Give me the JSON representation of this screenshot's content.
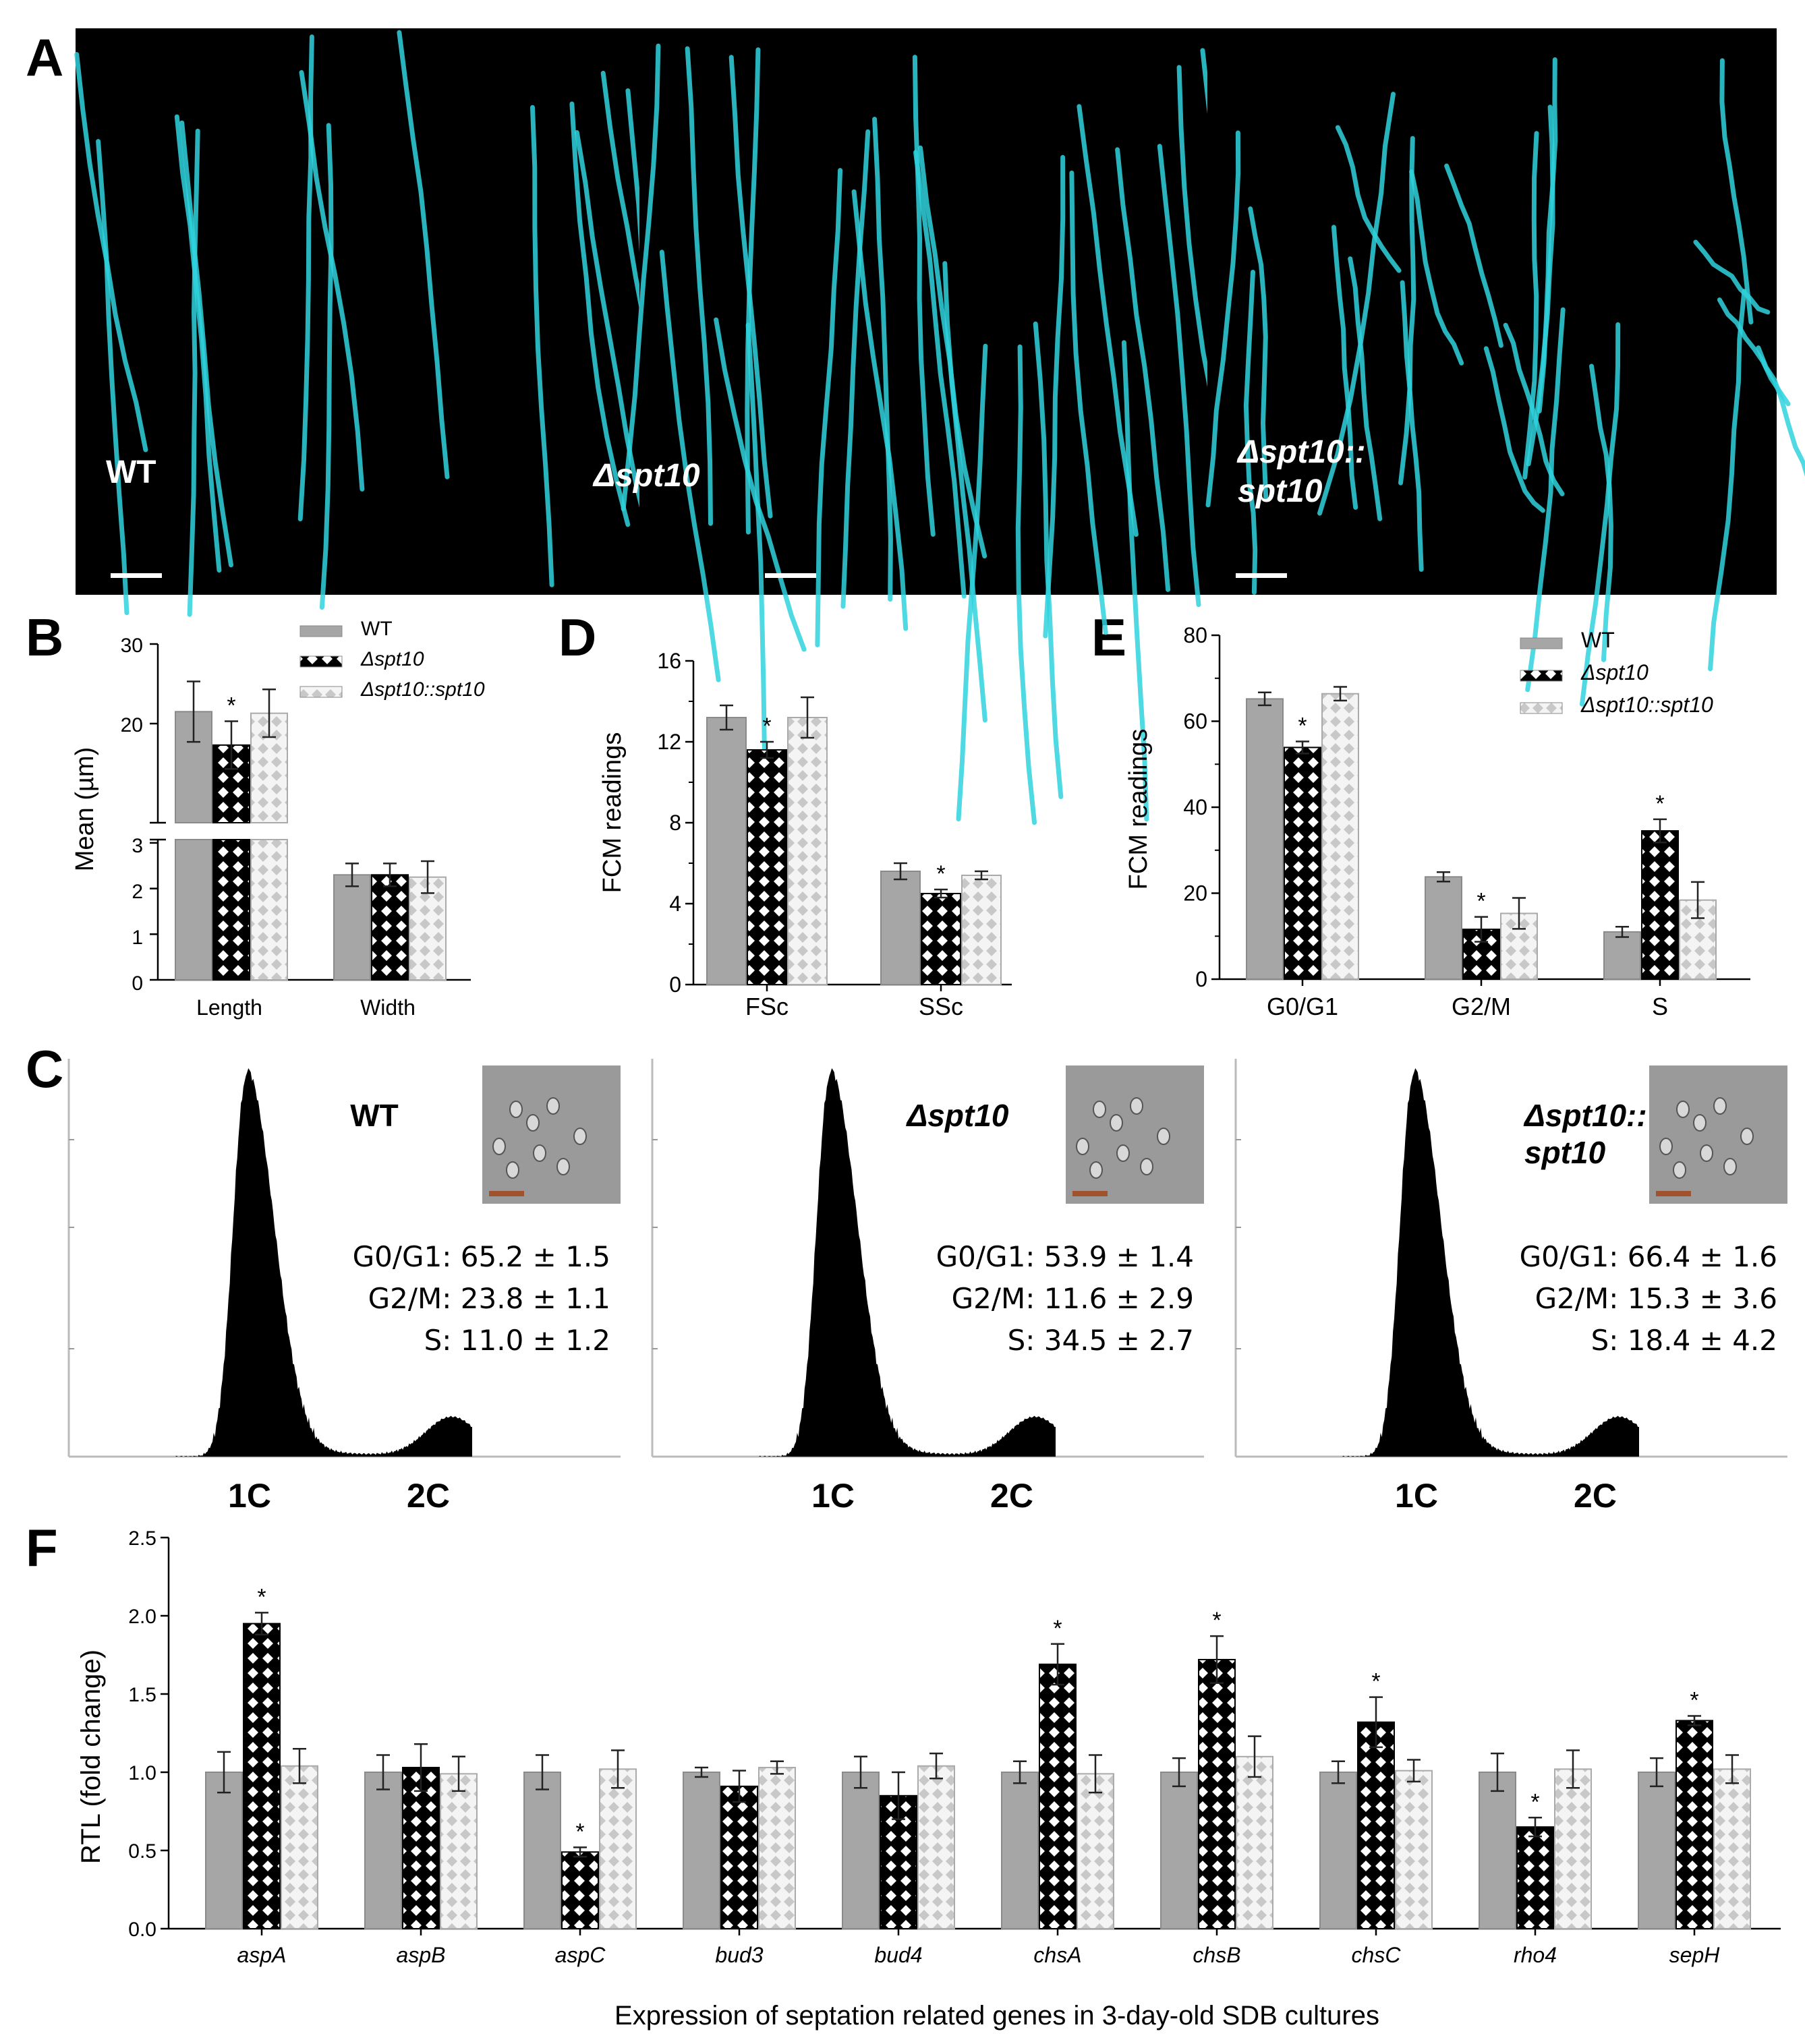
{
  "panels": {
    "A": "A",
    "B": "B",
    "C": "C",
    "D": "D",
    "E": "E",
    "F": "F"
  },
  "micro": [
    {
      "label": "WT",
      "italic": false,
      "line2": ""
    },
    {
      "label": "Δspt10",
      "italic": true,
      "line2": ""
    },
    {
      "label": "Δspt10::",
      "italic": true,
      "line2": "spt10"
    }
  ],
  "legend": {
    "wt": "WT",
    "mut": "Δspt10",
    "comp": "Δspt10::spt10"
  },
  "colors": {
    "wt": "#a6a6a6",
    "mut": "#000000",
    "comp": "#d6d6d6",
    "hypha": "#2fd2de"
  },
  "chart_data": [
    {
      "id": "B",
      "type": "bar",
      "categories": [
        "Length",
        "Width"
      ],
      "ylabel": "Mean (µm)",
      "yticks_upper": [
        "30",
        "20"
      ],
      "yticks_lower": [
        "3",
        "2",
        "1",
        "0"
      ],
      "broken_axis": true,
      "series": [
        {
          "name": "WT",
          "values": [
            21.5,
            2.3
          ],
          "err": [
            3.8,
            0.25
          ]
        },
        {
          "name": "Δspt10",
          "values": [
            17.3,
            2.3
          ],
          "err": [
            3.0,
            0.25
          ]
        },
        {
          "name": "Δspt10::spt10",
          "values": [
            21.3,
            2.25
          ],
          "err": [
            3.0,
            0.35
          ]
        }
      ],
      "significant": [
        [
          1,
          0
        ]
      ]
    },
    {
      "id": "D",
      "type": "bar",
      "categories": [
        "FSc",
        "SSc"
      ],
      "ylabel": "FCM readings",
      "ylim": [
        0,
        16
      ],
      "yticks": [
        "0",
        "4",
        "8",
        "12",
        "16"
      ],
      "series": [
        {
          "name": "WT",
          "values": [
            13.2,
            5.6
          ],
          "err": [
            0.6,
            0.4
          ]
        },
        {
          "name": "Δspt10",
          "values": [
            11.6,
            4.5
          ],
          "err": [
            0.4,
            0.2
          ]
        },
        {
          "name": "Δspt10::spt10",
          "values": [
            13.2,
            5.4
          ],
          "err": [
            1.0,
            0.2
          ]
        }
      ],
      "significant": [
        [
          1,
          0
        ],
        [
          1,
          1
        ]
      ]
    },
    {
      "id": "E",
      "type": "bar",
      "categories": [
        "G0/G1",
        "G2/M",
        "S"
      ],
      "ylabel": "FCM readings",
      "ylim": [
        0,
        80
      ],
      "yticks": [
        "0",
        "20",
        "40",
        "60",
        "80"
      ],
      "series": [
        {
          "name": "WT",
          "values": [
            65.2,
            23.8,
            11.0
          ],
          "err": [
            1.5,
            1.1,
            1.2
          ]
        },
        {
          "name": "Δspt10",
          "values": [
            53.9,
            11.6,
            34.5
          ],
          "err": [
            1.4,
            2.9,
            2.7
          ]
        },
        {
          "name": "Δspt10::spt10",
          "values": [
            66.4,
            15.3,
            18.4
          ],
          "err": [
            1.6,
            3.6,
            4.2
          ]
        }
      ],
      "significant": [
        [
          1,
          0
        ],
        [
          1,
          1
        ],
        [
          1,
          2
        ]
      ]
    },
    {
      "id": "C",
      "type": "area",
      "xticks": [
        "1C",
        "2C"
      ],
      "histograms": [
        {
          "title": "WT",
          "italic": false,
          "title2": "",
          "stats": [
            "G0/G1: 65.2 ± 1.5",
            "G2/M: 23.8 ± 1.1",
            "S: 11.0 ± 1.2"
          ]
        },
        {
          "title": "Δspt10",
          "italic": true,
          "title2": "",
          "stats": [
            "G0/G1: 53.9 ± 1.4",
            "G2/M: 11.6 ± 2.9",
            "S: 34.5 ± 2.7"
          ]
        },
        {
          "title": "Δspt10::",
          "italic": true,
          "title2": "spt10",
          "stats": [
            "G0/G1: 66.4 ± 1.6",
            "G2/M: 15.3 ± 3.6",
            "S: 18.4 ± 4.2"
          ]
        }
      ]
    },
    {
      "id": "F",
      "type": "bar",
      "categories": [
        "aspA",
        "aspB",
        "aspC",
        "bud3",
        "bud4",
        "chsA",
        "chsB",
        "chsC",
        "rho4",
        "sepH"
      ],
      "ylabel": "RTL (fold change)",
      "xlabel": "Expression of septation related genes in 3-day-old SDB cultures",
      "ylim": [
        0,
        2.5
      ],
      "yticks": [
        "0.0",
        "0.5",
        "1.0",
        "1.5",
        "2.0",
        "2.5"
      ],
      "series": [
        {
          "name": "WT",
          "values": [
            1.0,
            1.0,
            1.0,
            1.0,
            1.0,
            1.0,
            1.0,
            1.0,
            1.0,
            1.0
          ],
          "err": [
            0.13,
            0.11,
            0.11,
            0.03,
            0.1,
            0.07,
            0.09,
            0.07,
            0.12,
            0.09
          ]
        },
        {
          "name": "Δspt10",
          "values": [
            1.95,
            1.03,
            0.49,
            0.91,
            0.85,
            1.69,
            1.72,
            1.32,
            0.65,
            1.33
          ],
          "err": [
            0.07,
            0.15,
            0.03,
            0.1,
            0.15,
            0.13,
            0.15,
            0.16,
            0.06,
            0.03
          ]
        },
        {
          "name": "Δspt10::spt10",
          "values": [
            1.04,
            0.99,
            1.02,
            1.03,
            1.04,
            0.99,
            1.1,
            1.01,
            1.02,
            1.02
          ],
          "err": [
            0.11,
            0.11,
            0.12,
            0.04,
            0.08,
            0.12,
            0.13,
            0.07,
            0.12,
            0.09
          ]
        }
      ],
      "significant": [
        [
          1,
          0
        ],
        [
          1,
          2
        ],
        [
          1,
          5
        ],
        [
          1,
          6
        ],
        [
          1,
          7
        ],
        [
          1,
          8
        ],
        [
          1,
          9
        ]
      ],
      "star": "*"
    }
  ]
}
